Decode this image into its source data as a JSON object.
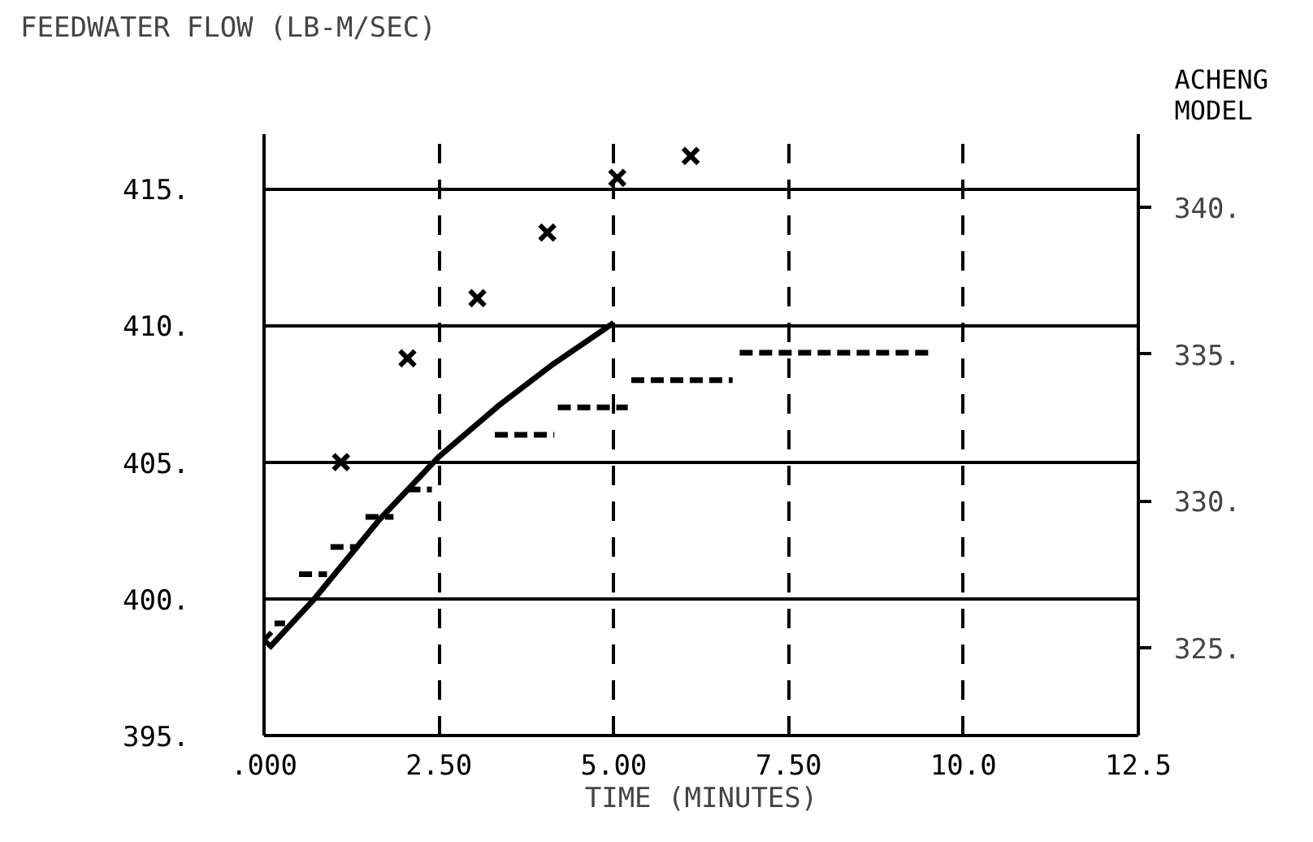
{
  "chart_data": {
    "type": "line",
    "ylabel": "FEEDWATER FLOW (LB-M/SEC)",
    "xlabel": "TIME (MINUTES)",
    "y2label": "ACHENG\nMODEL",
    "xlim": [
      0,
      12.5
    ],
    "ylim": [
      395,
      417
    ],
    "y2lim": [
      322,
      342.5
    ],
    "xticks": [
      {
        "value": 0,
        "label": ".000"
      },
      {
        "value": 2.5,
        "label": "2.50"
      },
      {
        "value": 5,
        "label": "5.00"
      },
      {
        "value": 7.5,
        "label": "7.50"
      },
      {
        "value": 10,
        "label": "10.0"
      },
      {
        "value": 12.5,
        "label": "12.5"
      }
    ],
    "yticks": [
      {
        "value": 395,
        "label": "395."
      },
      {
        "value": 400,
        "label": "400."
      },
      {
        "value": 405,
        "label": "405."
      },
      {
        "value": 410,
        "label": "410."
      },
      {
        "value": 415,
        "label": "415."
      }
    ],
    "y2ticks": [
      {
        "value": 325,
        "label": "325."
      },
      {
        "value": 330,
        "label": "330."
      },
      {
        "value": 335,
        "label": "335."
      },
      {
        "value": 340,
        "label": "340."
      }
    ],
    "grid": true,
    "series": [
      {
        "type": "line",
        "color": "#000000",
        "line_style": "solid",
        "x": [
          0.07,
          0.72,
          1.65,
          2.5,
          3.37,
          4.14,
          5.0
        ],
        "values": [
          398.2,
          400.0,
          402.9,
          405.2,
          407.1,
          408.6,
          410.1
        ]
      },
      {
        "type": "scatter",
        "marker": "cross",
        "color": "#000000",
        "x": [
          0,
          1.1,
          2.05,
          3.05,
          4.05,
          5.05,
          6.1
        ],
        "values": [
          398.5,
          405.0,
          408.8,
          411.0,
          413.4,
          415.4,
          416.2
        ]
      },
      {
        "type": "line",
        "color": "#000000",
        "line_style": "dashed",
        "x": [
          0.15,
          0.3,
          null,
          0.5,
          0.9,
          null,
          0.95,
          1.35,
          null,
          1.45,
          1.85,
          null,
          2.05,
          2.4,
          null,
          3.3,
          4.15,
          null,
          4.2,
          5.2,
          null,
          5.25,
          6.7,
          null,
          6.8,
          9.5
        ],
        "values": [
          399.1,
          399.1,
          null,
          400.9,
          400.9,
          null,
          401.9,
          401.9,
          null,
          403.0,
          403.0,
          null,
          404.0,
          404.0,
          null,
          406.0,
          406.0,
          null,
          407.0,
          407.0,
          null,
          408.0,
          408.0,
          null,
          409.0,
          409.0
        ]
      }
    ]
  }
}
